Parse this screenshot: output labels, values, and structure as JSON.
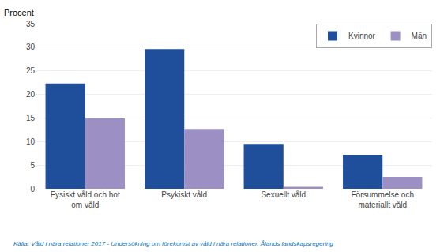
{
  "chart_data": {
    "type": "bar",
    "categories": [
      "Fysiskt våld och hot\nom våld",
      "Psykiskt våld",
      "Sexuellt våld",
      "Försummelse och\nmateriallt våld"
    ],
    "series": [
      {
        "name": "Kvinnor",
        "color": "#1F4E9A",
        "values": [
          22.3,
          29.6,
          9.5,
          7.2
        ]
      },
      {
        "name": "Män",
        "color": "#9B8FC4",
        "values": [
          14.9,
          12.7,
          0.4,
          2.5
        ]
      }
    ],
    "ylabel": "Procent",
    "annotations": [
      "Källa: Våld i nära relationer 2017 - Undersökning om förekomst av våld i nära relationer. Ålands landskapsregering"
    ],
    "ylim": [
      0,
      35
    ],
    "yticks": [
      0,
      5,
      10,
      15,
      20,
      25,
      30,
      35
    ],
    "grid": true,
    "legend": "upper right"
  }
}
